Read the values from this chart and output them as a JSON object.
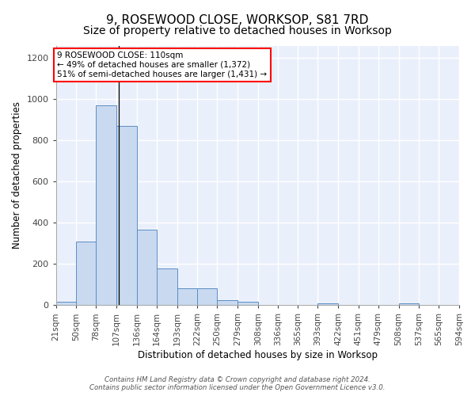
{
  "title": "9, ROSEWOOD CLOSE, WORKSOP, S81 7RD",
  "subtitle": "Size of property relative to detached houses in Worksop",
  "xlabel": "Distribution of detached houses by size in Worksop",
  "ylabel": "Number of detached properties",
  "bins": [
    21,
    50,
    78,
    107,
    136,
    164,
    193,
    222,
    250,
    279,
    308,
    336,
    365,
    393,
    422,
    451,
    479,
    508,
    537,
    565,
    594
  ],
  "counts": [
    15,
    310,
    970,
    870,
    365,
    178,
    80,
    80,
    25,
    15,
    0,
    0,
    0,
    10,
    0,
    0,
    0,
    10,
    0,
    0
  ],
  "bar_color": "#c9d9f0",
  "bar_edge_color": "#5b8ec4",
  "annotation_text": "9 ROSEWOOD CLOSE: 110sqm\n← 49% of detached houses are smaller (1,372)\n51% of semi-detached houses are larger (1,431) →",
  "annotation_box_color": "white",
  "annotation_box_edge_color": "red",
  "vline_x": 110,
  "vline_color": "black",
  "footer_text": "Contains HM Land Registry data © Crown copyright and database right 2024.\nContains public sector information licensed under the Open Government Licence v3.0.",
  "tick_labels": [
    "21sqm",
    "50sqm",
    "78sqm",
    "107sqm",
    "136sqm",
    "164sqm",
    "193sqm",
    "222sqm",
    "250sqm",
    "279sqm",
    "308sqm",
    "336sqm",
    "365sqm",
    "393sqm",
    "422sqm",
    "451sqm",
    "479sqm",
    "508sqm",
    "537sqm",
    "565sqm",
    "594sqm"
  ],
  "ylim": [
    0,
    1260
  ],
  "yticks": [
    0,
    200,
    400,
    600,
    800,
    1000,
    1200
  ],
  "bg_color": "#eaf0fb",
  "grid_color": "white",
  "title_fontsize": 11,
  "subtitle_fontsize": 10,
  "axis_label_fontsize": 8.5,
  "tick_fontsize": 7.5,
  "annotation_fontsize": 7.5,
  "footer_fontsize": 6.2
}
